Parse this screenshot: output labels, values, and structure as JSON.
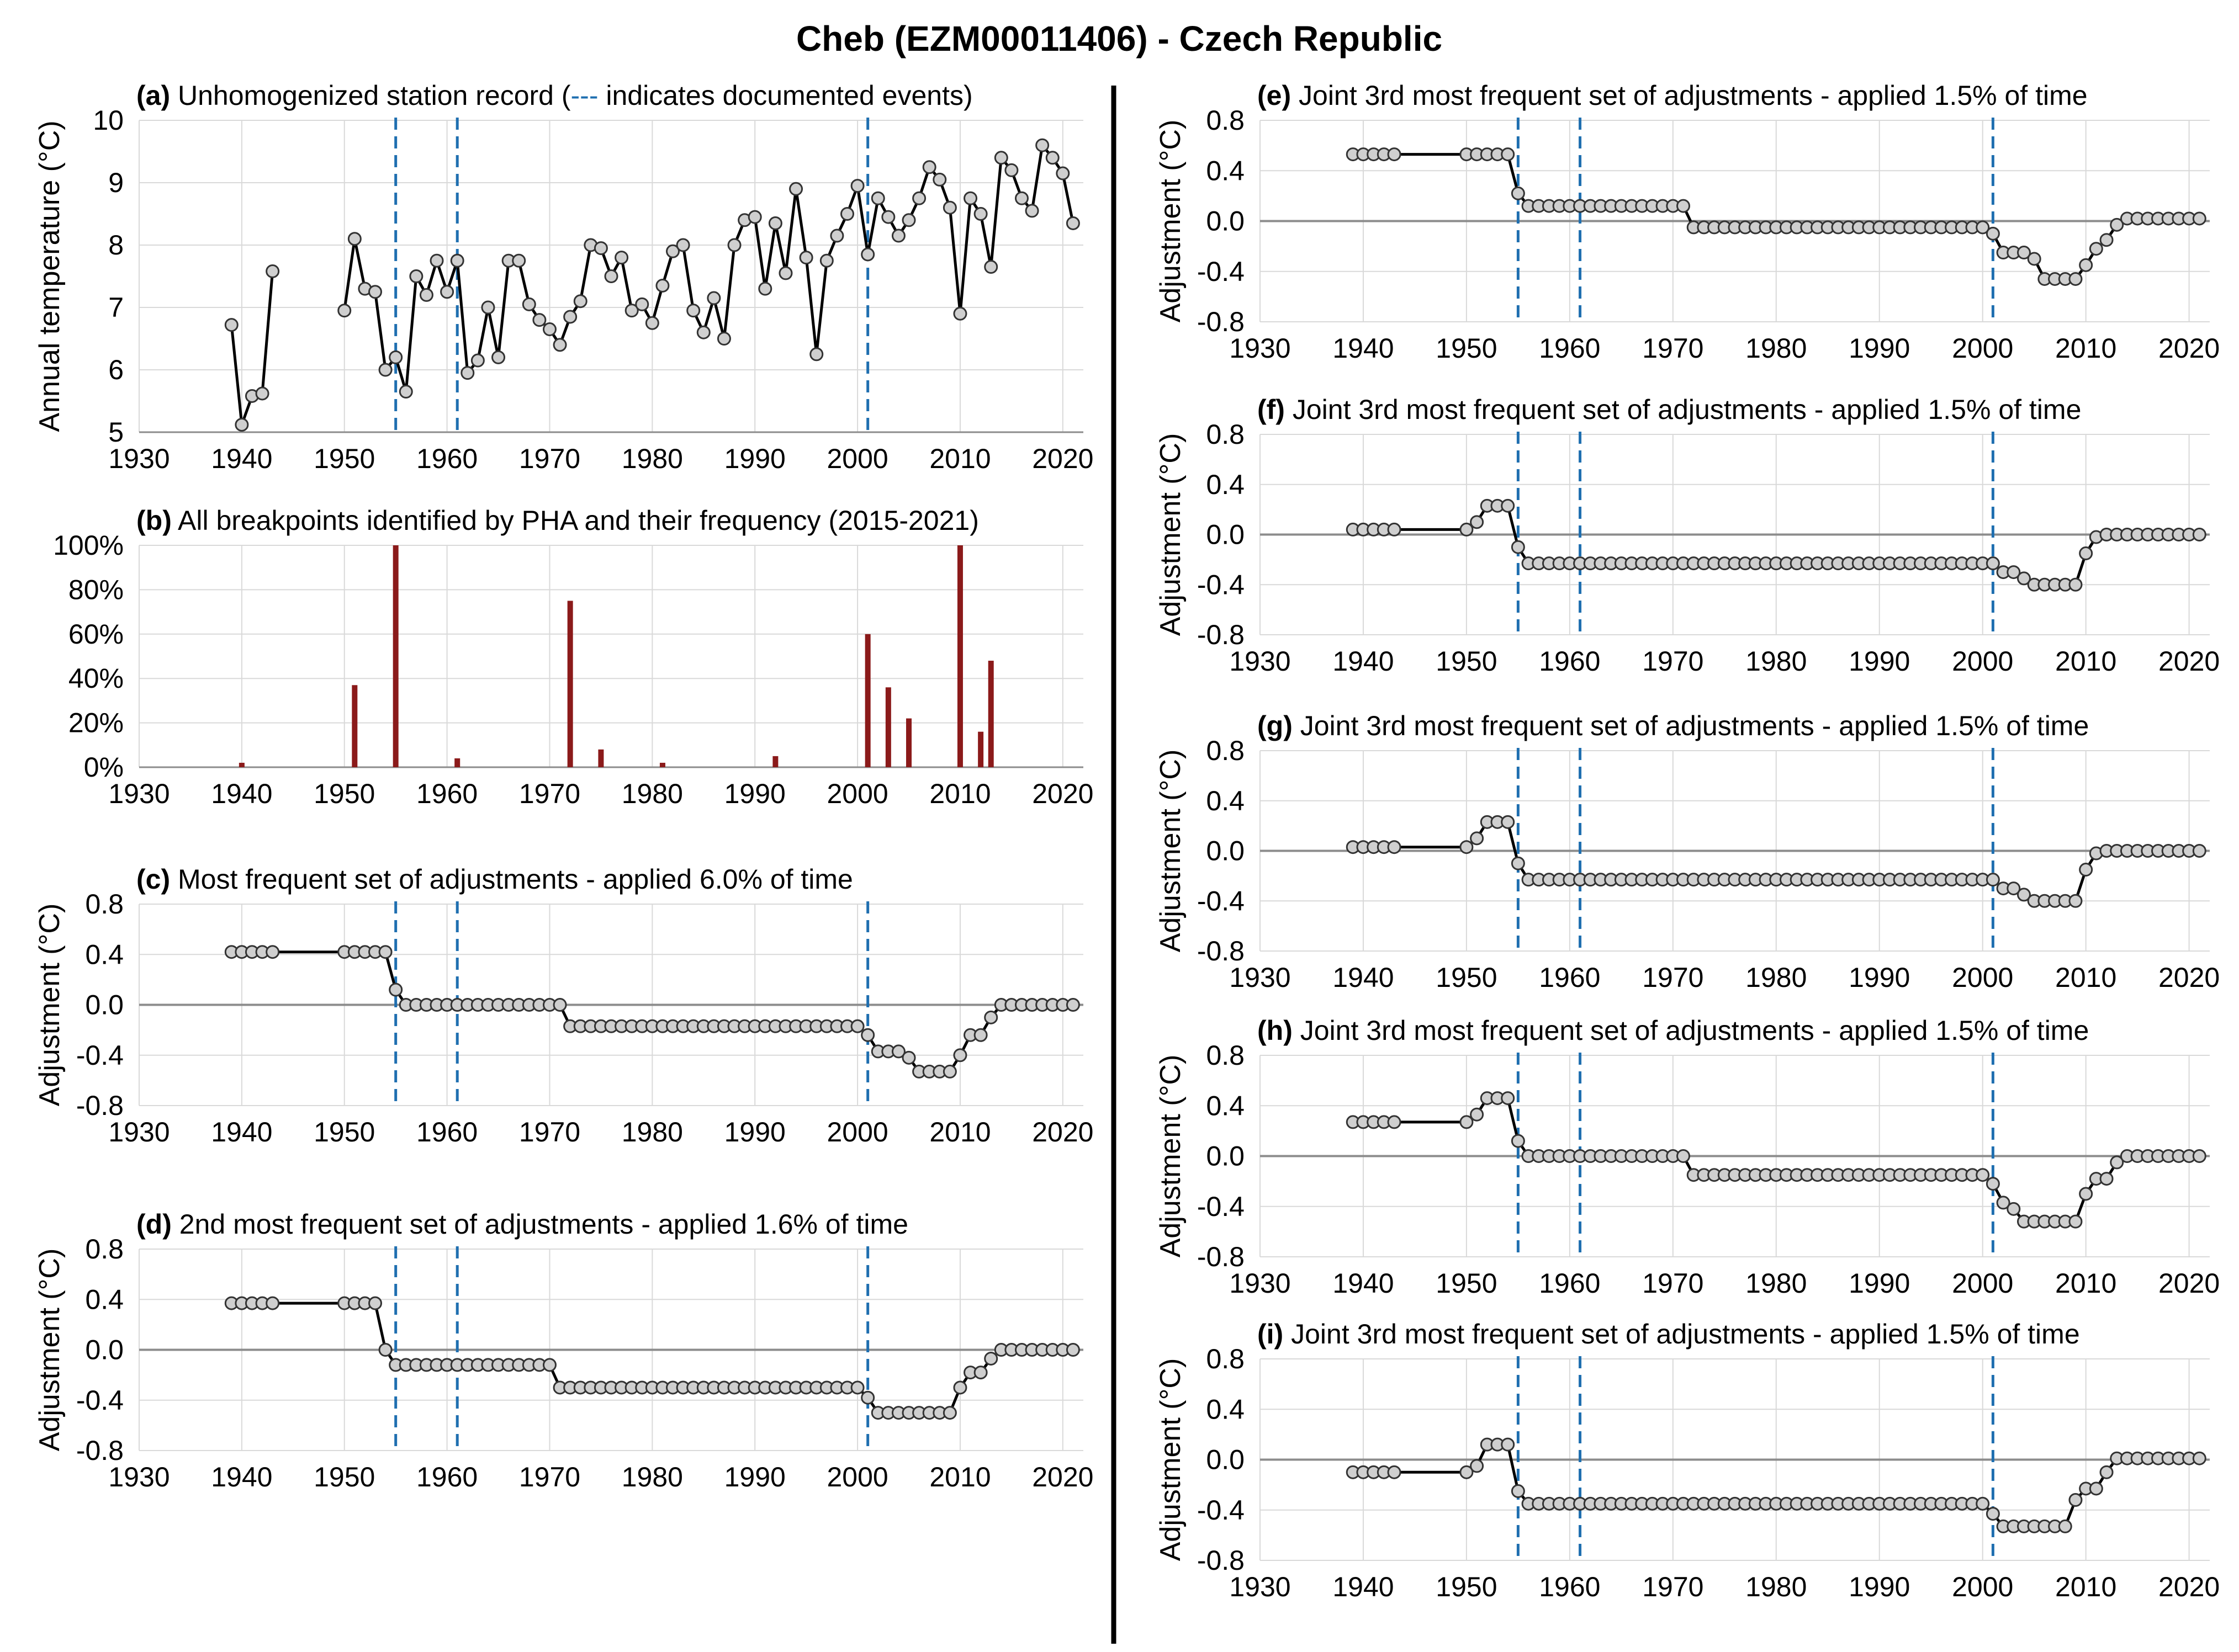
{
  "title": "Cheb (EZM00011406) - Czech Republic",
  "colors": {
    "event_line": "#1f6fb0",
    "bar": "#8b1a1a",
    "line": "#000000",
    "marker_fill": "#cfcfcf"
  },
  "chart_data": [
    {
      "id": "a",
      "type": "line",
      "label": "(a)",
      "title": "Unhomogenized station record (",
      "title_dash": "---",
      "title_suffix": " indicates documented events)",
      "ylabel": "Annual  temperature (°C)",
      "xlim": [
        1930,
        2022
      ],
      "ylim": [
        5,
        10
      ],
      "xticks": [
        "1930",
        "1940",
        "1950",
        "1960",
        "1970",
        "1980",
        "1990",
        "2000",
        "2010",
        "2020"
      ],
      "yticks": [
        "5",
        "6",
        "7",
        "8",
        "9",
        "10"
      ],
      "events": [
        1955,
        1961,
        2001
      ],
      "segments": [
        {
          "x": [
            1939,
            1940,
            1941,
            1942,
            1943
          ],
          "y": [
            6.72,
            5.12,
            5.58,
            5.62,
            7.58
          ]
        },
        {
          "x": [
            1950,
            1951,
            1952,
            1953,
            1954,
            1955,
            1956,
            1957,
            1958,
            1959,
            1960,
            1961,
            1962,
            1963,
            1964,
            1965,
            1966,
            1967,
            1968,
            1969,
            1970,
            1971,
            1972,
            1973,
            1974,
            1975,
            1976,
            1977,
            1978,
            1979,
            1980,
            1981,
            1982,
            1983,
            1984,
            1985,
            1986,
            1987,
            1988,
            1989,
            1990,
            1991,
            1992,
            1993,
            1994,
            1995,
            1996,
            1997,
            1998,
            1999,
            2000,
            2001,
            2002,
            2003,
            2004,
            2005,
            2006,
            2007,
            2008,
            2009,
            2010,
            2011,
            2012,
            2013,
            2014,
            2015,
            2016,
            2017,
            2018,
            2019,
            2020,
            2021
          ],
          "y": [
            6.95,
            8.1,
            7.3,
            7.25,
            6.0,
            6.2,
            5.65,
            7.5,
            7.2,
            7.75,
            7.25,
            7.75,
            5.95,
            6.15,
            7.0,
            6.2,
            7.75,
            7.75,
            7.05,
            6.8,
            6.65,
            6.4,
            6.85,
            7.1,
            8.0,
            7.95,
            7.5,
            7.8,
            6.95,
            7.05,
            6.75,
            7.35,
            7.9,
            8.0,
            6.95,
            6.6,
            7.15,
            6.5,
            8.0,
            8.4,
            8.45,
            7.3,
            8.35,
            7.55,
            8.9,
            7.8,
            6.25,
            7.75,
            8.15,
            8.5,
            8.95,
            7.85,
            8.75,
            8.45,
            8.15,
            8.4,
            8.75,
            9.25,
            9.05,
            8.6,
            6.9,
            8.75,
            8.5,
            7.65,
            9.4,
            9.2,
            8.75,
            8.55,
            9.6,
            9.4,
            9.15,
            8.35
          ]
        }
      ]
    },
    {
      "id": "b",
      "type": "bar",
      "label": "(b)",
      "title": "All breakpoints identified by PHA and their frequency (2015-2021)",
      "xlim": [
        1930,
        2022
      ],
      "ylim": [
        0,
        100
      ],
      "xticks": [
        "1930",
        "1940",
        "1950",
        "1960",
        "1970",
        "1980",
        "1990",
        "2000",
        "2010",
        "2020"
      ],
      "yticks": [
        "0%",
        "20%",
        "40%",
        "60%",
        "80%",
        "100%"
      ],
      "x": [
        1940,
        1951,
        1955,
        1961,
        1972,
        1975,
        1981,
        1992,
        2001,
        2003,
        2005,
        2010,
        2012,
        2013
      ],
      "values": [
        2,
        37,
        100,
        4,
        75,
        8,
        2,
        5,
        60,
        36,
        22,
        100,
        16,
        48
      ]
    },
    {
      "id": "c",
      "type": "line",
      "label": "(c)",
      "title": "Most frequent set of adjustments - applied 6.0% of time",
      "ylabel": "Adjustment (°C)",
      "xlim": [
        1930,
        2022
      ],
      "ylim": [
        -0.8,
        0.8
      ],
      "xticks": [
        "1930",
        "1940",
        "1950",
        "1960",
        "1970",
        "1980",
        "1990",
        "2000",
        "2010",
        "2020"
      ],
      "yticks": [
        "-0.8",
        "-0.4",
        "0.0",
        "0.4",
        "0.8"
      ],
      "events": [
        1955,
        1961,
        2001
      ],
      "steps": [
        [
          1939,
          1954,
          0.42
        ],
        [
          1955,
          1955,
          0.12
        ],
        [
          1956,
          1971,
          0.0
        ],
        [
          1972,
          2000,
          -0.17
        ],
        [
          2001,
          2001,
          -0.24
        ],
        [
          2002,
          2004,
          -0.37
        ],
        [
          2005,
          2005,
          -0.42
        ],
        [
          2006,
          2009,
          -0.53
        ],
        [
          2010,
          2010,
          -0.4
        ],
        [
          2011,
          2012,
          -0.24
        ],
        [
          2013,
          2013,
          -0.1
        ],
        [
          2014,
          2021,
          0.0
        ]
      ]
    },
    {
      "id": "d",
      "type": "line",
      "label": "(d)",
      "title": "2nd most frequent set of adjustments - applied 1.6% of time",
      "ylabel": "Adjustment (°C)",
      "xlim": [
        1930,
        2022
      ],
      "ylim": [
        -0.8,
        0.8
      ],
      "xticks": [
        "1930",
        "1940",
        "1950",
        "1960",
        "1970",
        "1980",
        "1990",
        "2000",
        "2010",
        "2020"
      ],
      "yticks": [
        "-0.8",
        "-0.4",
        "0.0",
        "0.4",
        "0.8"
      ],
      "events": [
        1955,
        1961,
        2001
      ],
      "steps": [
        [
          1939,
          1953,
          0.37
        ],
        [
          1954,
          1954,
          0.0
        ],
        [
          1955,
          1970,
          -0.12
        ],
        [
          1971,
          2000,
          -0.3
        ],
        [
          2001,
          2001,
          -0.38
        ],
        [
          2002,
          2009,
          -0.5
        ],
        [
          2010,
          2010,
          -0.3
        ],
        [
          2011,
          2012,
          -0.18
        ],
        [
          2013,
          2013,
          -0.07
        ],
        [
          2014,
          2021,
          0.0
        ]
      ]
    },
    {
      "id": "e",
      "type": "line",
      "label": "(e)",
      "title": "Joint 3rd most frequent set of adjustments - applied 1.5% of time",
      "ylabel": "Adjustment (°C)",
      "xlim": [
        1930,
        2022
      ],
      "ylim": [
        -0.8,
        0.8
      ],
      "xticks": [
        "1930",
        "1940",
        "1950",
        "1960",
        "1970",
        "1980",
        "1990",
        "2000",
        "2010",
        "2020"
      ],
      "yticks": [
        "-0.8",
        "-0.4",
        "0.0",
        "0.4",
        "0.8"
      ],
      "events": [
        1955,
        1961,
        2001
      ],
      "steps": [
        [
          1939,
          1954,
          0.53
        ],
        [
          1955,
          1955,
          0.22
        ],
        [
          1956,
          1971,
          0.12
        ],
        [
          1972,
          2000,
          -0.05
        ],
        [
          2001,
          2001,
          -0.1
        ],
        [
          2002,
          2004,
          -0.25
        ],
        [
          2005,
          2005,
          -0.3
        ],
        [
          2006,
          2009,
          -0.46
        ],
        [
          2010,
          2010,
          -0.35
        ],
        [
          2011,
          2011,
          -0.22
        ],
        [
          2012,
          2012,
          -0.15
        ],
        [
          2013,
          2013,
          -0.03
        ],
        [
          2014,
          2021,
          0.02
        ]
      ]
    },
    {
      "id": "f",
      "type": "line",
      "label": "(f)",
      "title": "Joint 3rd most frequent set of adjustments - applied 1.5% of time",
      "ylabel": "Adjustment (°C)",
      "xlim": [
        1930,
        2022
      ],
      "ylim": [
        -0.8,
        0.8
      ],
      "xticks": [
        "1930",
        "1940",
        "1950",
        "1960",
        "1970",
        "1980",
        "1990",
        "2000",
        "2010",
        "2020"
      ],
      "yticks": [
        "-0.8",
        "-0.4",
        "0.0",
        "0.4",
        "0.8"
      ],
      "events": [
        1955,
        1961,
        2001
      ],
      "steps": [
        [
          1939,
          1950,
          0.04
        ],
        [
          1951,
          1951,
          0.1
        ],
        [
          1952,
          1954,
          0.23
        ],
        [
          1955,
          1955,
          -0.1
        ],
        [
          1956,
          2001,
          -0.23
        ],
        [
          2002,
          2003,
          -0.3
        ],
        [
          2004,
          2004,
          -0.35
        ],
        [
          2005,
          2009,
          -0.4
        ],
        [
          2010,
          2010,
          -0.15
        ],
        [
          2011,
          2011,
          -0.02
        ],
        [
          2012,
          2021,
          0.0
        ]
      ]
    },
    {
      "id": "g",
      "type": "line",
      "label": "(g)",
      "title": "Joint 3rd most frequent set of adjustments - applied 1.5% of time",
      "ylabel": "Adjustment (°C)",
      "xlim": [
        1930,
        2022
      ],
      "ylim": [
        -0.8,
        0.8
      ],
      "xticks": [
        "1930",
        "1940",
        "1950",
        "1960",
        "1970",
        "1980",
        "1990",
        "2000",
        "2010",
        "2020"
      ],
      "yticks": [
        "-0.8",
        "-0.4",
        "0.0",
        "0.4",
        "0.8"
      ],
      "events": [
        1955,
        1961,
        2001
      ],
      "steps": [
        [
          1939,
          1950,
          0.03
        ],
        [
          1951,
          1951,
          0.1
        ],
        [
          1952,
          1954,
          0.23
        ],
        [
          1955,
          1955,
          -0.1
        ],
        [
          1956,
          2001,
          -0.23
        ],
        [
          2002,
          2003,
          -0.3
        ],
        [
          2004,
          2004,
          -0.35
        ],
        [
          2005,
          2009,
          -0.4
        ],
        [
          2010,
          2010,
          -0.15
        ],
        [
          2011,
          2011,
          -0.02
        ],
        [
          2012,
          2021,
          0.0
        ]
      ]
    },
    {
      "id": "h",
      "type": "line",
      "label": "(h)",
      "title": "Joint 3rd most frequent set of adjustments - applied 1.5% of time",
      "ylabel": "Adjustment (°C)",
      "xlim": [
        1930,
        2022
      ],
      "ylim": [
        -0.8,
        0.8
      ],
      "xticks": [
        "1930",
        "1940",
        "1950",
        "1960",
        "1970",
        "1980",
        "1990",
        "2000",
        "2010",
        "2020"
      ],
      "yticks": [
        "-0.8",
        "-0.4",
        "0.0",
        "0.4",
        "0.8"
      ],
      "events": [
        1955,
        1961,
        2001
      ],
      "steps": [
        [
          1939,
          1950,
          0.27
        ],
        [
          1951,
          1951,
          0.33
        ],
        [
          1952,
          1954,
          0.46
        ],
        [
          1955,
          1955,
          0.12
        ],
        [
          1956,
          1971,
          0.0
        ],
        [
          1972,
          2000,
          -0.15
        ],
        [
          2001,
          2001,
          -0.22
        ],
        [
          2002,
          2002,
          -0.37
        ],
        [
          2003,
          2003,
          -0.42
        ],
        [
          2004,
          2009,
          -0.52
        ],
        [
          2010,
          2010,
          -0.3
        ],
        [
          2011,
          2012,
          -0.18
        ],
        [
          2013,
          2013,
          -0.05
        ],
        [
          2014,
          2021,
          0.0
        ]
      ]
    },
    {
      "id": "i",
      "type": "line",
      "label": "(i)",
      "title": "Joint 3rd most frequent set of adjustments - applied 1.5% of time",
      "ylabel": "Adjustment (°C)",
      "xlim": [
        1930,
        2022
      ],
      "ylim": [
        -0.8,
        0.8
      ],
      "xticks": [
        "1930",
        "1940",
        "1950",
        "1960",
        "1970",
        "1980",
        "1990",
        "2000",
        "2010",
        "2020"
      ],
      "yticks": [
        "-0.8",
        "-0.4",
        "0.0",
        "0.4",
        "0.8"
      ],
      "events": [
        1955,
        1961,
        2001
      ],
      "steps": [
        [
          1939,
          1950,
          -0.1
        ],
        [
          1951,
          1951,
          -0.05
        ],
        [
          1952,
          1954,
          0.12
        ],
        [
          1955,
          1955,
          -0.25
        ],
        [
          1956,
          2000,
          -0.35
        ],
        [
          2001,
          2001,
          -0.43
        ],
        [
          2002,
          2008,
          -0.53
        ],
        [
          2009,
          2009,
          -0.32
        ],
        [
          2010,
          2011,
          -0.23
        ],
        [
          2012,
          2012,
          -0.1
        ],
        [
          2013,
          2021,
          0.01
        ]
      ]
    }
  ]
}
